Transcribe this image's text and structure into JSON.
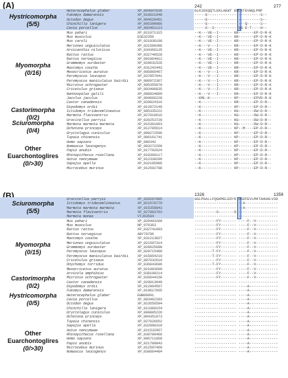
{
  "panel_a": {
    "label": "(A)",
    "pos_start": "242",
    "pos_end": "277",
    "groups": [
      {
        "name": "Hystricomorpha",
        "count": "(5/5)"
      },
      {
        "name": "Myomorpha",
        "count": "(0/16)"
      },
      {
        "name": "Castorimorpha",
        "count": "(0/2)"
      },
      {
        "name": "Sciuromorpha",
        "count": "(0/4)"
      },
      {
        "name": "Other Euarchontoglires",
        "count": "(0/>30)"
      }
    ],
    "rows": [
      {
        "sp": "Heterocephalus glaber",
        "acc": "XP_004847836",
        "seq": "GLKIEKQQTLEKLAEWT  ENLKTEVWQLPRF"
      },
      {
        "sp": "Fukomys damarensis",
        "acc": "XP_010621040",
        "seq": "-----E-------------  ----------S--"
      },
      {
        "sp": "Octodon degus",
        "acc": "XP_004628461",
        "seq": "-----E-------------  ----------S--"
      },
      {
        "sp": "Chinchilla lanigera",
        "acc": "XP_005399986",
        "seq": "-----E-------------  ---Q------S--"
      },
      {
        "sp": "Cavia porcellus",
        "acc": "XP_003461113",
        "seq": "-----E--S----------  QS-E-T----H--"
      },
      {
        "sp": "Mus pahari",
        "acc": "XP_021071315",
        "seq": "--K---VE--I------  KR-------EP-D-R-K"
      },
      {
        "sp": "Mus musculus",
        "acc": "ESE32356",
        "seq": "--K---VE--I------  KR-------EP-D-R-K"
      },
      {
        "sp": "Mus caroli",
        "acc": "XP_021036100",
        "seq": "--K---VE--I------  KR-------EP-D-R-K"
      },
      {
        "sp": "Meriones unguiculatus",
        "acc": "XP_021509396",
        "seq": "--K---V---I------  KR-------EP-D-R-K"
      },
      {
        "sp": "Arvicanthis niloticus",
        "acc": "XP_034366135",
        "seq": "--K---VE--I------  KR-------EP-D-R-K"
      },
      {
        "sp": "Rattus rattus",
        "acc": "XP_032740528",
        "seq": "--K---VE--I------  KR-------EP-D-R-K"
      },
      {
        "sp": "Rattus norvegicus",
        "acc": "XP_001064912",
        "seq": "--K---VE--I------  KR-------EP-D-R-K"
      },
      {
        "sp": "Grammomys surdaster",
        "acc": "XP_028631526",
        "seq": "--K---VE--I------  KR-------EP-D-R-K"
      },
      {
        "sp": "Mastomys coucha",
        "acc": "XP_031242443",
        "seq": "--K---VE--I------  KR-------EP-D-R-K"
      },
      {
        "sp": "Mesocricetus auratus",
        "acc": "XP_005066467",
        "seq": "--K---V---I------  KR-------EP-D-R-K"
      },
      {
        "sp": "Peromyscus leucopus",
        "acc": "XP_037057941",
        "seq": "--K---V---I------  KR-------EP-D-R-K"
      },
      {
        "sp": "Peromyscus maniculatus bairdii",
        "acc": "XP_006972367",
        "seq": "--K---V---I------  KR-------EP-D-R-K"
      },
      {
        "sp": "Microtus ochrogaster",
        "acc": "XP_005355070",
        "seq": "--K---V---I------  KR-------EP-D-R-K"
      },
      {
        "sp": "Cricetulus griseus",
        "acc": "XP_003496835",
        "seq": "--K---V---I------  KR-------EP-D-R-K"
      },
      {
        "sp": "Nannospalax galili",
        "acc": "XP_008834899",
        "seq": "--K---V---I------  KR-------EP-D-R-K"
      },
      {
        "sp": "Jaculus jaculus",
        "acc": "XP_004666228",
        "seq": "--KML-K----------  KP-------EPVD-R-K"
      },
      {
        "sp": "Castor canadensis",
        "acc": "XP_020024316",
        "seq": "--K--------------  KR-------EP-D-R--"
      },
      {
        "sp": "Dipodomys ordii",
        "acc": "XP_012872149",
        "seq": "--K--------------  KP-------EP-D-R--"
      },
      {
        "sp": "Ictidomys tridecemlineatus",
        "acc": "XP_005335222",
        "seq": "--K--------------  KG-------DW-D-R--"
      },
      {
        "sp": "Marmota flaviventris",
        "acc": "XP_027810616",
        "seq": "--K--------------  KG-------DW-D-R--"
      },
      {
        "sp": "Urocitellus parryii",
        "acc": "XP_026253720",
        "seq": "--K--------------  KG-------DW-D-R--"
      },
      {
        "sp": "Marmota marmota marmota",
        "acc": "XP_015361603",
        "seq": "--K--------------  KG-------DW-D-R--"
      },
      {
        "sp": "Ochotona princeps",
        "acc": "XP_012785614",
        "seq": "--K--------------  KP--M----EP-D-R--"
      },
      {
        "sp": "Oryctolagus cuniculus",
        "acc": "XP_008272506",
        "seq": "--K--------------  KP-------EP-D-R--"
      },
      {
        "sp": "Tupaia chinensis",
        "acc": "XP_006161741",
        "seq": "--K--------------  KP-------EP-D-R--"
      },
      {
        "sp": "Homo sapiens",
        "acc": "NP_006342",
        "seq": "--K--------------  KP-------EP-D-R--"
      },
      {
        "sp": "Nomascus leucogenys",
        "acc": "XP_003272260",
        "seq": "--K--------------  KP-------EP-D-R--"
      },
      {
        "sp": "Papio anubis",
        "acc": "XP_017792624",
        "seq": "--K--------------  KP-------EP-D-R--"
      },
      {
        "sp": "Rhinopithecus roxellana",
        "acc": "XP_010360117",
        "seq": "--K--------------  KP-------EP-D-R--"
      },
      {
        "sp": "Aotus nancymaae",
        "acc": "XP_012330296",
        "seq": "--K--------------  KP-------EP-D-R--"
      },
      {
        "sp": "Sapajus apella",
        "acc": "XP_032105986",
        "seq": "--K--------------  KP-------EP-D-R--"
      },
      {
        "sp": "Microcebus murinus",
        "acc": "XP_012592708",
        "seq": "--K--------------  KP-------EP-D-R--"
      }
    ]
  },
  "panel_b": {
    "label": "(B)",
    "pos_start": "1326",
    "pos_end": "1350",
    "groups": [
      {
        "name": "Sciuromorpha",
        "count": "(5/5)"
      },
      {
        "name": "Myomorpha",
        "count": "(0/15)"
      },
      {
        "name": "Castorimorpha",
        "count": "(0/2)"
      },
      {
        "name": "Hystricomorpha",
        "count": "(0/5)"
      },
      {
        "name": "Other Euarchontoglires",
        "count": "(0/>30)"
      }
    ],
    "rows": [
      {
        "sp": "Urocitellus parryii",
        "acc": "XP_026267995",
        "seq": "GGLPGALLFQGKMELEDYD  DSDFEVLMKTAHGHLVSD"
      },
      {
        "sp": "Ictidomys tridecemlineatus",
        "acc": "XP_021578779",
        "seq": "-------------------  --A---------------"
      },
      {
        "sp": "Marmota marmota marmota",
        "acc": "XP_015359843",
        "seq": "-------------------  --A---------------"
      },
      {
        "sp": "Marmota flaviventris",
        "acc": "XP_027803793",
        "seq": "----------G-------D  ------------------"
      },
      {
        "sp": "Marmota monax",
        "acc": "VTJ63594",
        "seq": "-------------------  ------------------"
      },
      {
        "sp": "Mus pahari",
        "acc": "XP_029403289",
        "seq": "----------FY-------  ----F--V----------"
      },
      {
        "sp": "Mus musculus",
        "acc": "NP_076363",
        "seq": "----------FY-------  ----F--V----------"
      },
      {
        "sp": "Rattus rattus",
        "acc": "XP_032741093",
        "seq": "----------FY-------  ----F--V----------"
      },
      {
        "sp": "Rattus norvegicus",
        "acc": "ABY79796",
        "seq": "----------FY-------  ----F--V----------"
      },
      {
        "sp": "Mastomys coucha",
        "acc": "XP_031213827",
        "seq": "----------FY-------  ----F--V----------"
      },
      {
        "sp": "Meriones unguiculatus",
        "acc": "XP_021507314",
        "seq": "----------FY-------  ----F--V----------"
      },
      {
        "sp": "Grammomys surdaster",
        "acc": "XP_028625688",
        "seq": "----------FY-------  ----F--V----------"
      },
      {
        "sp": "Peromyscus leucopus",
        "acc": "XP_028715489",
        "seq": "--------T-FY-------  ----F--V----------"
      },
      {
        "sp": "Peromyscus maniculatus bairdii",
        "acc": "XP_015854219",
        "seq": "--------T-FY-------  ----F--V----------"
      },
      {
        "sp": "Cricetulus griseus",
        "acc": "XP_007632619",
        "seq": "----------FY-------  ----F--V----------"
      },
      {
        "sp": "Onychomys torridus",
        "acc": "XP_036043696",
        "seq": "--------T-FY-------  ----F--V----------"
      },
      {
        "sp": "Mesocricetus auratus",
        "acc": "XP_021083609",
        "seq": "----------FY-------  ----F--V----------"
      },
      {
        "sp": "Arvicola amphibius",
        "acc": "XP_038190214",
        "seq": "----------FY-------  ----F--V----------"
      },
      {
        "sp": "Microtus ochrogaster",
        "acc": "XP_026644150",
        "seq": "----------FY-------  ----F--V----------"
      },
      {
        "sp": "Castor canadensis",
        "acc": "XP_020013049",
        "seq": "-------------------  ------------------"
      },
      {
        "sp": "Dipodomys ordii",
        "acc": "XP_012864567",
        "seq": "-------------------  ----A-------------"
      },
      {
        "sp": "Fukomys damarensis",
        "acc": "XP_019617665",
        "seq": "-------------------  ----A-------------"
      },
      {
        "sp": "Heterocephalus glaber",
        "acc": "EHB09991",
        "seq": "-------------------  ----A-------------"
      },
      {
        "sp": "Cavia porcellus",
        "acc": "XP_003462283",
        "seq": "-------------------  ----A-------------"
      },
      {
        "sp": "Octodon degus",
        "acc": "XP_023556594",
        "seq": "-------------------  ----A-------------"
      },
      {
        "sp": "Chinchilla lanigera",
        "acc": "XP_013360154",
        "seq": "-------------------  ----A-------------"
      },
      {
        "sp": "Oryctolagus cuniculus",
        "acc": "XP_008005226",
        "seq": "-------------------  ----A-------------"
      },
      {
        "sp": "Ochotona princeps",
        "acc": "XP_004351073",
        "seq": "-------------------  ----A-------------"
      },
      {
        "sp": "Tupaia chinensis",
        "acc": "XP_027626652",
        "seq": "-------------------  ----A-------------"
      },
      {
        "sp": "Sapajus apella",
        "acc": "XP_032098310",
        "seq": "-------------------  ----A-------------"
      },
      {
        "sp": "Aotus nancymaae",
        "acc": "XP_021532957",
        "seq": "-------------------  ----A-------------"
      },
      {
        "sp": "Rhinopithecus roxellana",
        "acc": "XP_030789466",
        "seq": "-------------------  ----A-------------"
      },
      {
        "sp": "Homo sapiens",
        "acc": "XP_006711868",
        "seq": "-------------------  ----A-------------"
      },
      {
        "sp": "Papio anubis",
        "acc": "XP_021789843",
        "seq": "-------------------  ----A-------------"
      },
      {
        "sp": "Microcebus murinus",
        "acc": "XP_012597469",
        "seq": "-------------------  ----A-------------"
      },
      {
        "sp": "Nomascus leucogenys",
        "acc": "XP_030664484",
        "seq": "-------------------  ----A-------------"
      }
    ]
  }
}
